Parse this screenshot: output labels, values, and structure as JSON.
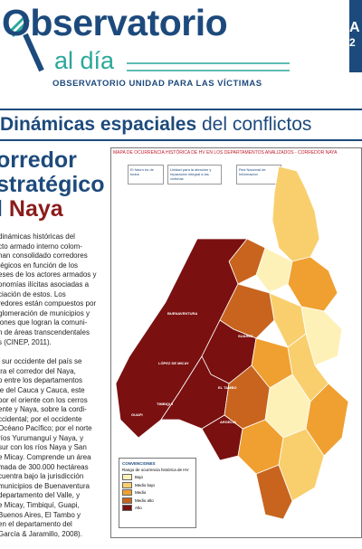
{
  "header": {
    "logo_title": "Observatorio",
    "logo_subtitle": "al día",
    "tagline": "OBSERVATORIO UNIDAD PARA LAS VÍCTIMAS",
    "side_top": "A",
    "side_bottom": "2"
  },
  "banner": {
    "bold": "Dinámicas espaciales",
    "regular": "del conflictos"
  },
  "article": {
    "title_lines": [
      "orredor",
      "stratégico"
    ],
    "title_prefix": "l",
    "title_highlight": "Naya",
    "paragraphs": [
      [
        "dinámicas históricas del",
        "cto armado interno colom-",
        "han consolidado corredores",
        "tégicos en función de los",
        "eses de los actores armados y",
        "onomías ilícitas asociadas a",
        "ciación de estos. Los",
        "redores están compuestos por",
        "glomeración de municipios y",
        "iones que logran la comuni-",
        "n de áreas transcendentales",
        "s (CINEP, 2011)."
      ],
      [
        "l sur occidente del país se",
        "tra el corredor del Naya,",
        "o entre los departamentos",
        "le del Cauca y Cauca, este",
        "por el oriente con los cerros",
        "ente y Naya, sobre la cordi-",
        "ccidental; por el occidente",
        "Océano Pacífico; por el norte",
        "ríos Yurumanguí y Naya, y",
        "sur con los ríos Naya y San",
        "e Micay. Comprende un área",
        "mada de 300.000 hectáreas",
        "cuentra bajo la jurisdicción",
        "municipios de Buenaventura",
        "departamento del Valle, y",
        "e Micay, Timbiquí, Guapi,",
        "Buenos Aires, El Tambo y",
        "en el departamento del",
        "García & Jaramillo, 2008)."
      ]
    ]
  },
  "map": {
    "title": "MAPA DE OCURRENCIA HISTÓRICA DE HV EN LOS DEPARTAMENTOS ANALIZADOS - CORREDOR NAYA",
    "logos": [
      "El futuro es de todos",
      "Unidad para la atención y reparación integral a las víctimas",
      "Red Nacional de Información"
    ],
    "places": [
      "BUENAVENTURA",
      "LÓPEZ DE MICAY",
      "TIMBIQUÍ",
      "GUAPI",
      "EL TAMBO",
      "ARGELIA",
      "JAMUNDÍ",
      "SUÁREZ"
    ],
    "legend": {
      "title": "CONVENCIONES",
      "subtitle": "Rango de ocurrencia histórica de HV",
      "items": [
        "Bajo",
        "Medio bajo",
        "Medio",
        "Medio alto",
        "Alto"
      ],
      "colors": [
        "#fdf1b8",
        "#f9cf6e",
        "#f0a030",
        "#c8641e",
        "#7a1010"
      ]
    }
  }
}
